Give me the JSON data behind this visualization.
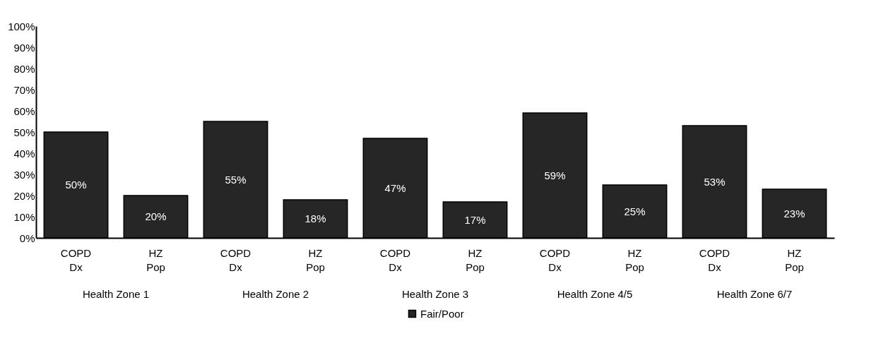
{
  "chart_data": {
    "type": "bar",
    "categories": [
      "COPD Dx",
      "HZ Pop",
      "COPD Dx",
      "HZ Pop",
      "COPD Dx",
      "HZ Pop",
      "COPD Dx",
      "HZ Pop",
      "COPD Dx",
      "HZ Pop"
    ],
    "annotations": [
      "Health Zone 1",
      "Health Zone 2",
      "Health Zone 3",
      "Health Zone 4/5",
      "Health Zone 6/7"
    ],
    "series": [
      {
        "name": "Fair/Poor",
        "color": "#262626",
        "values": [
          50,
          20,
          55,
          18,
          47,
          17,
          59,
          25,
          53,
          23
        ]
      }
    ],
    "ylim": [
      0,
      100
    ],
    "yticks": [
      {
        "value": 0,
        "label": "0%"
      },
      {
        "value": 10,
        "label": "10%"
      },
      {
        "value": 20,
        "label": "20%"
      },
      {
        "value": 30,
        "label": "30%"
      },
      {
        "value": 40,
        "label": "40%"
      },
      {
        "value": 50,
        "label": "50%"
      },
      {
        "value": 60,
        "label": "60%"
      },
      {
        "value": 70,
        "label": "70%"
      },
      {
        "value": 80,
        "label": "80%"
      },
      {
        "value": 90,
        "label": "90%"
      },
      {
        "value": 100,
        "label": "100%"
      }
    ],
    "value_labels": [
      "50%",
      "20%",
      "55%",
      "18%",
      "47%",
      "17%",
      "59%",
      "25%",
      "53%",
      "23%"
    ],
    "grid": false,
    "legend": "bottom"
  }
}
